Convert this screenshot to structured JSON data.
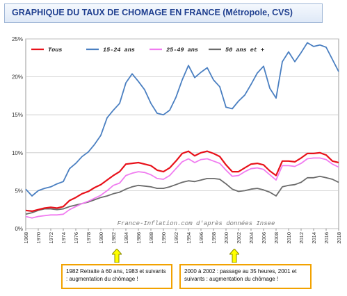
{
  "title": "GRAPHIQUE DU TAUX DE CHOMAGE EN FRANCE (Métropole, CVS)",
  "watermark": "France-Inflation.com d'après données Insee",
  "notes": [
    {
      "text": "1982 Retraite à 60 ans, 1983 et suivants : augmentation du chômage !",
      "year": 1983
    },
    {
      "text": "2000 à 2002 : passage au 35 heures, 2001 et suivants : augmentation du chômage !",
      "year": 2001
    }
  ],
  "colors": {
    "tous": "#e8111a",
    "jeunes": "#4a7fc1",
    "adultes": "#f07bf0",
    "seniors": "#6b6b6b",
    "arrow_fill": "#ffff00",
    "arrow_stroke": "#8a8a00",
    "note_border": "#f2a200",
    "title": "#1f3f8f"
  },
  "chart_data": {
    "type": "line",
    "title": "GRAPHIQUE DU TAUX DE CHOMAGE EN FRANCE (Métropole, CVS)",
    "xlabel": "",
    "ylabel": "",
    "xlim": [
      1968,
      2018
    ],
    "ylim": [
      0,
      25
    ],
    "yticks": [
      {
        "v": 0,
        "label": "0%"
      },
      {
        "v": 5,
        "label": "5%"
      },
      {
        "v": 10,
        "label": "10%"
      },
      {
        "v": 15,
        "label": "15%"
      },
      {
        "v": 20,
        "label": "20%"
      },
      {
        "v": 25,
        "label": "25%"
      }
    ],
    "xticks": [
      "1968",
      "1970",
      "1972",
      "1974",
      "1976",
      "1978",
      "1980",
      "1982",
      "1984",
      "1986",
      "1988",
      "1990",
      "1992",
      "1994",
      "1996",
      "1998",
      "2000",
      "2002",
      "2004",
      "2006",
      "2008",
      "2010",
      "2012",
      "2014",
      "2016",
      "2018"
    ],
    "grid": true,
    "legend_position": "top-left",
    "series": [
      {
        "name": "Tous",
        "color_key": "tous",
        "x": [
          1968,
          1969,
          1970,
          1971,
          1972,
          1973,
          1974,
          1975,
          1976,
          1977,
          1978,
          1979,
          1980,
          1981,
          1982,
          1983,
          1984,
          1985,
          1986,
          1987,
          1988,
          1989,
          1990,
          1991,
          1992,
          1993,
          1994,
          1995,
          1996,
          1997,
          1998,
          1999,
          2000,
          2001,
          2002,
          2003,
          2004,
          2005,
          2006,
          2007,
          2008,
          2009,
          2010,
          2011,
          2012,
          2013,
          2014,
          2015,
          2016,
          2017,
          2018
        ],
        "values": [
          2.4,
          2.3,
          2.5,
          2.7,
          2.8,
          2.7,
          2.9,
          3.7,
          4.1,
          4.6,
          4.9,
          5.4,
          5.8,
          6.4,
          7.0,
          7.5,
          8.5,
          8.6,
          8.7,
          8.5,
          8.3,
          7.7,
          7.5,
          8.0,
          8.9,
          9.9,
          10.2,
          9.6,
          10.0,
          10.2,
          9.9,
          9.5,
          8.4,
          7.5,
          7.5,
          8.0,
          8.5,
          8.6,
          8.4,
          7.6,
          7.0,
          8.9,
          8.9,
          8.8,
          9.3,
          9.9,
          9.9,
          10.0,
          9.7,
          8.9,
          8.7
        ]
      },
      {
        "name": "15-24 ans",
        "color_key": "jeunes",
        "x": [
          1968,
          1969,
          1970,
          1971,
          1972,
          1973,
          1974,
          1975,
          1976,
          1977,
          1978,
          1979,
          1980,
          1981,
          1982,
          1983,
          1984,
          1985,
          1986,
          1987,
          1988,
          1989,
          1990,
          1991,
          1992,
          1993,
          1994,
          1995,
          1996,
          1997,
          1998,
          1999,
          2000,
          2001,
          2002,
          2003,
          2004,
          2005,
          2006,
          2007,
          2008,
          2009,
          2010,
          2011,
          2012,
          2013,
          2014,
          2015,
          2016,
          2017,
          2018
        ],
        "values": [
          5.2,
          4.3,
          5.0,
          5.3,
          5.5,
          5.9,
          6.2,
          7.9,
          8.6,
          9.5,
          10.1,
          11.1,
          12.3,
          14.6,
          15.6,
          16.5,
          19.2,
          20.4,
          19.4,
          18.3,
          16.5,
          15.2,
          15.0,
          15.6,
          17.3,
          19.6,
          21.5,
          19.9,
          20.6,
          21.2,
          19.6,
          18.7,
          16.0,
          15.8,
          16.8,
          17.6,
          19.0,
          20.5,
          21.4,
          18.5,
          17.2,
          22.0,
          23.3,
          22.0,
          23.2,
          24.5,
          24.0,
          24.2,
          23.9,
          22.3,
          20.7
        ]
      },
      {
        "name": "25-49 ans",
        "color_key": "adultes",
        "x": [
          1968,
          1969,
          1970,
          1971,
          1972,
          1973,
          1974,
          1975,
          1976,
          1977,
          1978,
          1979,
          1980,
          1981,
          1982,
          1983,
          1984,
          1985,
          1986,
          1987,
          1988,
          1989,
          1990,
          1991,
          1992,
          1993,
          1994,
          1995,
          1996,
          1997,
          1998,
          1999,
          2000,
          2001,
          2002,
          2003,
          2004,
          2005,
          2006,
          2007,
          2008,
          2009,
          2010,
          2011,
          2012,
          2013,
          2014,
          2015,
          2016,
          2017,
          2018
        ],
        "values": [
          1.6,
          1.4,
          1.6,
          1.7,
          1.8,
          1.8,
          1.9,
          2.5,
          2.9,
          3.3,
          3.6,
          4.0,
          4.4,
          5.0,
          5.7,
          6.0,
          7.0,
          7.3,
          7.5,
          7.4,
          7.1,
          6.6,
          6.5,
          7.0,
          7.9,
          8.8,
          9.2,
          8.7,
          9.1,
          9.2,
          8.9,
          8.6,
          7.7,
          6.9,
          7.0,
          7.5,
          7.9,
          8.0,
          7.8,
          7.1,
          6.4,
          8.3,
          8.3,
          8.2,
          8.6,
          9.2,
          9.3,
          9.3,
          9.1,
          8.5,
          8.1
        ]
      },
      {
        "name": "50 ans et +",
        "color_key": "seniors",
        "x": [
          1968,
          1969,
          1970,
          1971,
          1972,
          1973,
          1974,
          1975,
          1976,
          1977,
          1978,
          1979,
          1980,
          1981,
          1982,
          1983,
          1984,
          1985,
          1986,
          1987,
          1988,
          1989,
          1990,
          1991,
          1992,
          1993,
          1994,
          1995,
          1996,
          1997,
          1998,
          1999,
          2000,
          2001,
          2002,
          2003,
          2004,
          2005,
          2006,
          2007,
          2008,
          2009,
          2010,
          2011,
          2012,
          2013,
          2014,
          2015,
          2016,
          2017,
          2018
        ],
        "values": [
          1.9,
          2.1,
          2.4,
          2.6,
          2.6,
          2.5,
          2.6,
          2.9,
          3.1,
          3.3,
          3.5,
          3.8,
          4.1,
          4.3,
          4.6,
          4.8,
          5.2,
          5.5,
          5.7,
          5.6,
          5.5,
          5.3,
          5.3,
          5.5,
          5.8,
          6.1,
          6.3,
          6.2,
          6.4,
          6.6,
          6.6,
          6.5,
          5.9,
          5.2,
          4.9,
          5.0,
          5.2,
          5.3,
          5.1,
          4.8,
          4.3,
          5.5,
          5.7,
          5.8,
          6.1,
          6.7,
          6.7,
          6.9,
          6.7,
          6.5,
          6.1
        ]
      }
    ]
  }
}
